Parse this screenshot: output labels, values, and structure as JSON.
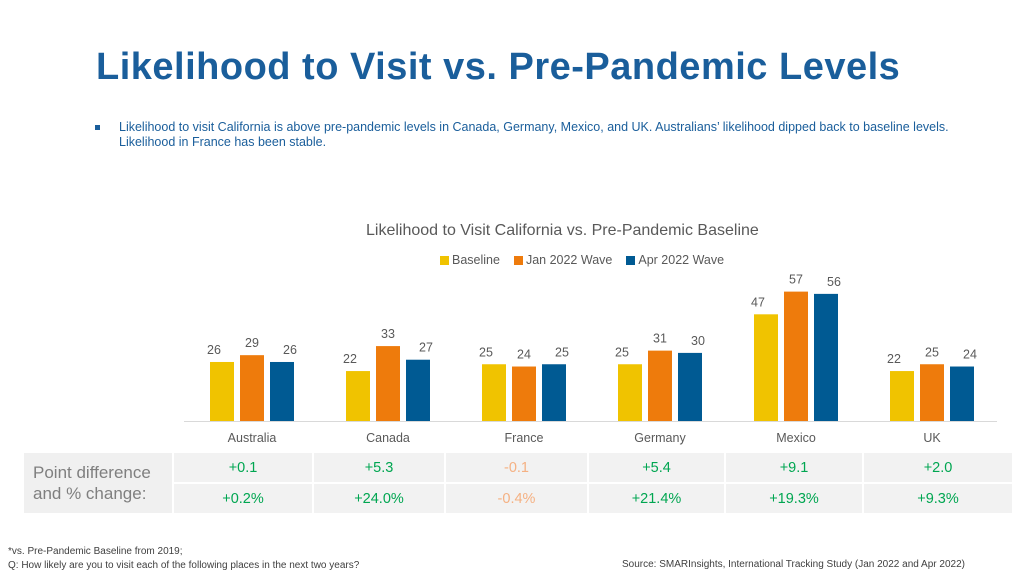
{
  "title": "Likelihood to Visit vs. Pre-Pandemic Levels",
  "bullet": "Likelihood to visit California is above pre-pandemic levels in Canada, Germany, Mexico, and UK. Australians’ likelihood dipped back to baseline levels. Likelihood in France has been stable.",
  "colors": {
    "title": "#1a5e9b",
    "baseline": "#f0c300",
    "jan": "#ee7b0c",
    "apr": "#005a93",
    "positive": "#00a651",
    "negative": "#f5b183"
  },
  "chart_data": {
    "type": "bar",
    "title": "Likelihood to Visit California vs. Pre-Pandemic Baseline",
    "categories": [
      "Australia",
      "Canada",
      "France",
      "Germany",
      "Mexico",
      "UK"
    ],
    "series": [
      {
        "name": "Baseline",
        "values": [
          26,
          22,
          25,
          25,
          47,
          22
        ]
      },
      {
        "name": "Jan 2022 Wave",
        "values": [
          29,
          33,
          24,
          31,
          57,
          25
        ]
      },
      {
        "name": "Apr 2022 Wave",
        "values": [
          26,
          27,
          25,
          30,
          56,
          24
        ]
      }
    ],
    "ylim": [
      0,
      60
    ],
    "legend_position": "top-center",
    "grid": false
  },
  "table": {
    "row_label": "Point difference and % change:",
    "point_diff": [
      "+0.1",
      "+5.3",
      "-0.1",
      "+5.4",
      "+9.1",
      "+2.0"
    ],
    "pct_change": [
      "+0.2%",
      "+24.0%",
      "-0.4%",
      "+21.4%",
      "+19.3%",
      "+9.3%"
    ]
  },
  "footnote": {
    "line1": "*vs. Pre-Pandemic Baseline from 2019;",
    "line2": "Q: How likely are you to visit each of the following places in the next two years?",
    "source": "Source: SMARInsights, International Tracking Study (Jan 2022 and Apr 2022)"
  }
}
